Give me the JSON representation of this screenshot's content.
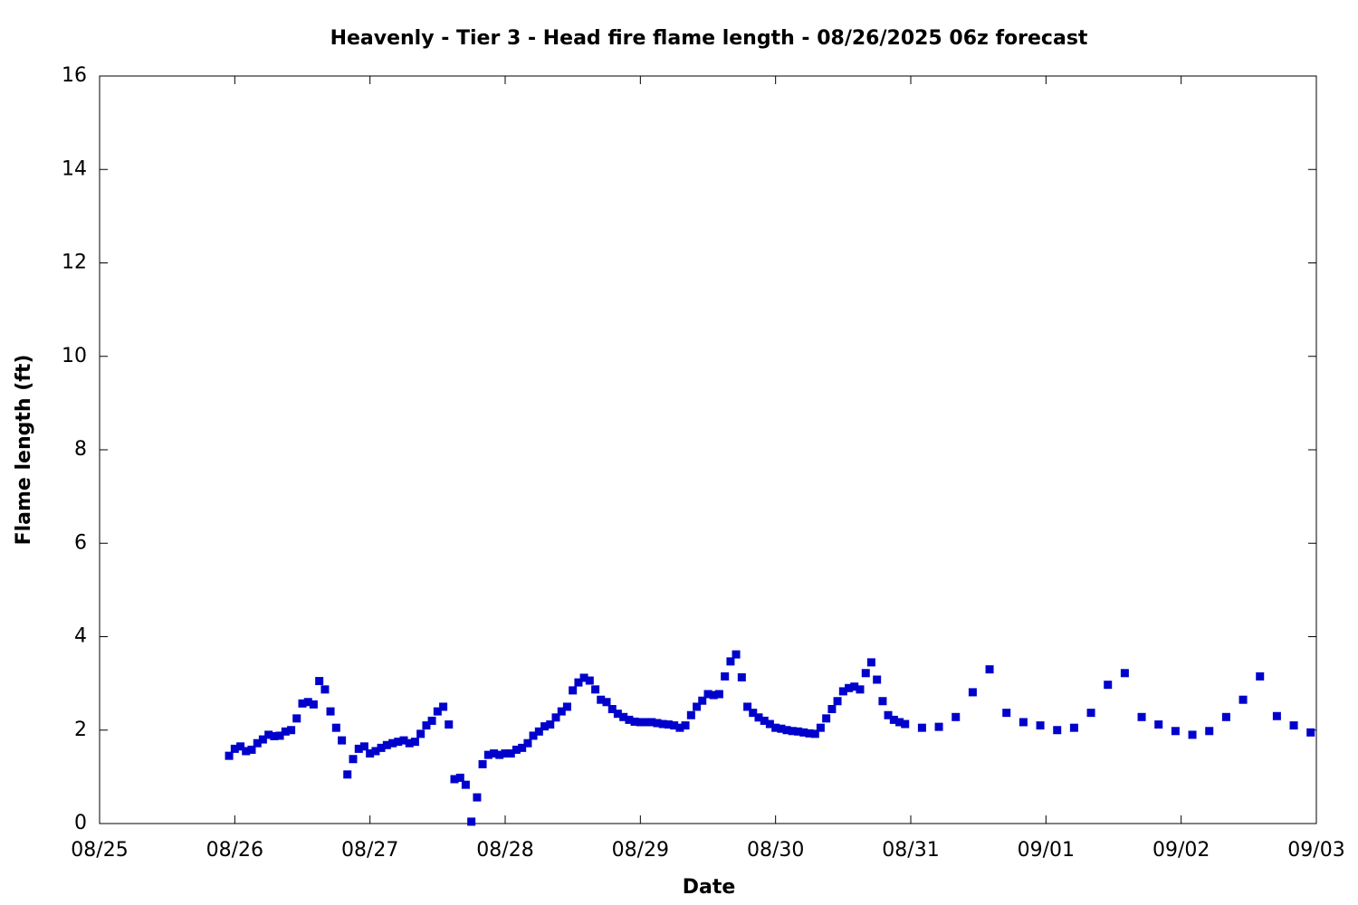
{
  "chart_data": {
    "type": "scatter",
    "title": "Heavenly - Tier 3 - Head fire flame length - 08/26/2025 06z forecast",
    "xlabel": "Date",
    "ylabel": "Flame length (ft)",
    "color": "#0000cc",
    "xlim": [
      0,
      9
    ],
    "xticks": [
      {
        "value": 0,
        "label": "08/25"
      },
      {
        "value": 1,
        "label": "08/26"
      },
      {
        "value": 2,
        "label": "08/27"
      },
      {
        "value": 3,
        "label": "08/28"
      },
      {
        "value": 4,
        "label": "08/29"
      },
      {
        "value": 5,
        "label": "08/30"
      },
      {
        "value": 6,
        "label": "08/31"
      },
      {
        "value": 7,
        "label": "09/01"
      },
      {
        "value": 8,
        "label": "09/02"
      },
      {
        "value": 9,
        "label": "09/03"
      }
    ],
    "ylim": [
      0,
      16
    ],
    "yticks": [
      0,
      2,
      4,
      6,
      8,
      10,
      12,
      14,
      16
    ],
    "x": [
      0.958,
      1,
      1.042,
      1.083,
      1.125,
      1.167,
      1.208,
      1.25,
      1.292,
      1.333,
      1.375,
      1.417,
      1.458,
      1.5,
      1.542,
      1.583,
      1.625,
      1.667,
      1.708,
      1.75,
      1.792,
      1.833,
      1.875,
      1.917,
      1.958,
      2,
      2.042,
      2.083,
      2.125,
      2.167,
      2.208,
      2.25,
      2.292,
      2.333,
      2.375,
      2.417,
      2.458,
      2.5,
      2.542,
      2.583,
      2.625,
      2.667,
      2.708,
      2.75,
      2.792,
      2.833,
      2.875,
      2.917,
      2.958,
      3,
      3.042,
      3.083,
      3.125,
      3.167,
      3.208,
      3.25,
      3.292,
      3.333,
      3.375,
      3.417,
      3.458,
      3.5,
      3.542,
      3.583,
      3.625,
      3.667,
      3.708,
      3.75,
      3.792,
      3.833,
      3.875,
      3.917,
      3.958,
      4,
      4.042,
      4.083,
      4.125,
      4.167,
      4.208,
      4.25,
      4.292,
      4.333,
      4.375,
      4.417,
      4.458,
      4.5,
      4.542,
      4.583,
      4.625,
      4.667,
      4.708,
      4.75,
      4.792,
      4.833,
      4.875,
      4.917,
      4.958,
      5,
      5.042,
      5.083,
      5.125,
      5.167,
      5.208,
      5.25,
      5.292,
      5.333,
      5.375,
      5.417,
      5.458,
      5.5,
      5.542,
      5.583,
      5.625,
      5.667,
      5.708,
      5.75,
      5.792,
      5.833,
      5.875,
      5.917,
      5.958,
      6.083,
      6.208,
      6.333,
      6.458,
      6.583,
      6.708,
      6.833,
      6.958,
      7.083,
      7.208,
      7.333,
      7.458,
      7.583,
      7.708,
      7.833,
      7.958,
      8.083,
      8.208,
      8.333,
      8.458,
      8.583,
      8.708,
      8.833,
      8.958
    ],
    "values": [
      1.45,
      1.6,
      1.65,
      1.55,
      1.58,
      1.72,
      1.8,
      1.9,
      1.87,
      1.88,
      1.97,
      2.0,
      2.25,
      2.57,
      2.6,
      2.55,
      3.05,
      2.87,
      2.4,
      2.05,
      1.78,
      1.05,
      1.38,
      1.6,
      1.65,
      1.5,
      1.55,
      1.62,
      1.68,
      1.72,
      1.75,
      1.78,
      1.72,
      1.75,
      1.92,
      2.1,
      2.2,
      2.4,
      2.5,
      2.12,
      0.95,
      0.98,
      0.83,
      0.04,
      0.56,
      1.27,
      1.47,
      1.5,
      1.47,
      1.5,
      1.5,
      1.58,
      1.62,
      1.72,
      1.88,
      1.97,
      2.08,
      2.12,
      2.27,
      2.4,
      2.5,
      2.85,
      3.02,
      3.12,
      3.06,
      2.87,
      2.65,
      2.6,
      2.45,
      2.35,
      2.28,
      2.22,
      2.18,
      2.17,
      2.17,
      2.17,
      2.15,
      2.13,
      2.12,
      2.1,
      2.05,
      2.1,
      2.32,
      2.5,
      2.63,
      2.77,
      2.75,
      2.77,
      3.15,
      3.47,
      3.62,
      3.13,
      2.5,
      2.37,
      2.27,
      2.2,
      2.13,
      2.05,
      2.03,
      2.0,
      1.98,
      1.97,
      1.95,
      1.93,
      1.92,
      2.05,
      2.25,
      2.45,
      2.62,
      2.83,
      2.9,
      2.93,
      2.87,
      3.22,
      3.45,
      3.08,
      2.62,
      2.32,
      2.22,
      2.17,
      2.13,
      2.05,
      2.07,
      2.28,
      2.81,
      3.3,
      2.37,
      2.17,
      2.1,
      2.0,
      2.05,
      2.37,
      2.97,
      3.22,
      2.28,
      2.12,
      1.98,
      1.9,
      1.98,
      2.28,
      2.65,
      3.15,
      2.3,
      2.1,
      1.95
    ]
  }
}
